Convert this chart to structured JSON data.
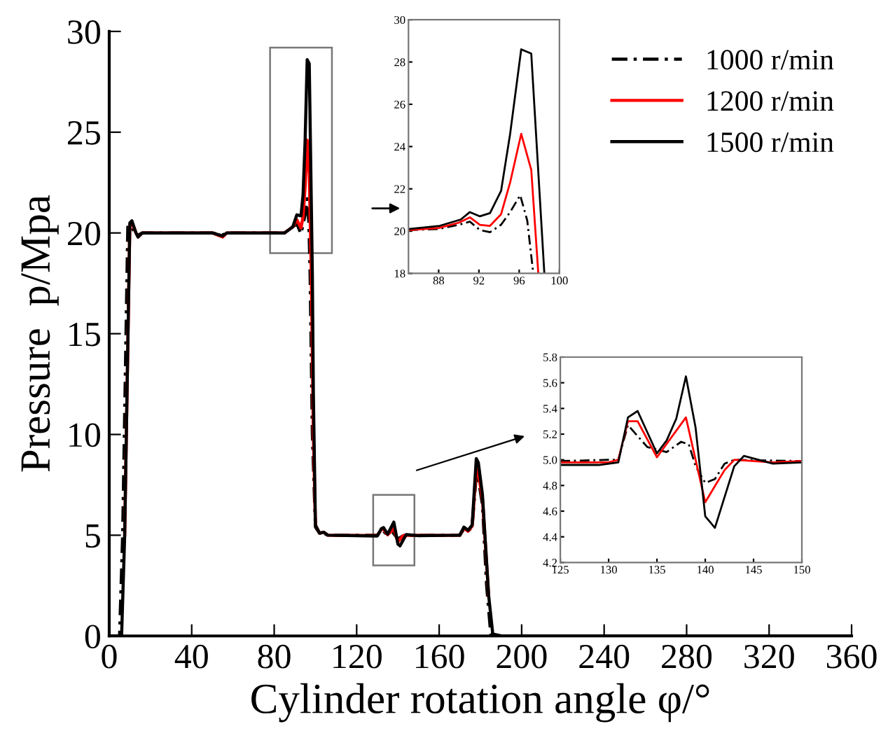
{
  "chart_data": [
    {
      "type": "line",
      "xlabel": "Cylinder rotation angle φ/°",
      "ylabel": "Pressure  p/Mpa",
      "xlim": [
        0,
        360
      ],
      "xticks": [
        0,
        40,
        80,
        120,
        160,
        200,
        240,
        280,
        320,
        360
      ],
      "ylim": [
        0,
        30
      ],
      "yticks": [
        0,
        5,
        10,
        15,
        20,
        25,
        30
      ],
      "grid": false,
      "legend": "top right",
      "series": [
        {
          "name": "1000 r/min",
          "color": "#000000",
          "line_style": "dashed",
          "x": [
            0,
            5,
            6.5,
            9,
            10,
            12,
            14,
            16,
            50,
            55,
            57,
            85,
            89,
            91,
            93,
            95,
            96,
            96.8,
            97.4,
            98.5,
            100,
            102,
            104,
            106,
            130,
            132,
            134,
            137.5,
            140,
            143,
            150,
            170,
            172,
            174,
            176,
            178,
            179,
            181,
            183,
            185,
            190,
            360
          ],
          "values": [
            0,
            0,
            5,
            20.3,
            20.4,
            20.1,
            19.9,
            20,
            20,
            19.9,
            20,
            20,
            20.3,
            20.45,
            19.95,
            20.9,
            21.7,
            20.5,
            18,
            10,
            5.4,
            5.1,
            5.1,
            5.0,
            5.0,
            5.27,
            5.1,
            5.14,
            4.82,
            5.0,
            4.99,
            5.0,
            5.3,
            5.2,
            5.4,
            8.0,
            7.8,
            6.5,
            2.5,
            0.1,
            0,
            0
          ]
        },
        {
          "name": "1200 r/min",
          "color": "#ff0000",
          "line_style": "solid",
          "x": [
            7.5,
            10,
            11,
            13,
            14,
            16,
            50,
            55,
            57,
            85,
            89,
            91,
            93,
            94,
            95,
            96,
            97,
            98,
            99,
            100,
            102,
            104,
            106,
            130,
            132,
            133,
            135,
            138,
            140,
            142,
            143,
            150,
            170,
            172,
            174,
            176,
            178,
            179,
            181,
            184
          ],
          "values": [
            5,
            20.4,
            20.5,
            20,
            19.8,
            20,
            20,
            19.8,
            20,
            20,
            20.3,
            20.65,
            20.25,
            20.8,
            22.3,
            24.6,
            22.9,
            18,
            10,
            5.5,
            5.1,
            5.15,
            5.0,
            4.98,
            5.3,
            5.3,
            5.02,
            5.33,
            4.67,
            4.92,
            5.0,
            4.99,
            5.0,
            5.35,
            5.2,
            5.45,
            8.3,
            8.1,
            6.8,
            2
          ]
        },
        {
          "name": "1500 r/min",
          "color": "#000000",
          "line_style": "solid",
          "x": [
            0,
            6,
            7.5,
            10,
            11,
            13,
            14,
            16,
            50,
            55,
            57,
            85,
            89,
            91,
            93,
            94,
            95,
            96,
            97,
            98.5,
            99,
            100,
            102,
            104,
            106,
            130,
            132,
            133,
            135,
            138,
            140,
            141,
            144,
            150,
            170,
            172,
            174,
            176,
            178,
            179,
            181,
            184,
            186,
            190,
            360
          ],
          "values": [
            0,
            0,
            5,
            20.5,
            20.6,
            20,
            19.8,
            20,
            20,
            19.85,
            20,
            20,
            20.3,
            20.9,
            20.85,
            21.9,
            24.6,
            28.6,
            28.4,
            18,
            12,
            5.5,
            5.1,
            5.15,
            5.0,
            4.96,
            5.33,
            5.38,
            5.05,
            5.65,
            4.56,
            4.47,
            5.03,
            4.98,
            5.0,
            5.4,
            5.25,
            5.5,
            8.8,
            8.6,
            7.0,
            2,
            0.1,
            0,
            0
          ]
        }
      ]
    },
    {
      "type": "line",
      "xlim": [
        85,
        100
      ],
      "xticks": [
        88,
        92,
        96,
        100
      ],
      "ylim": [
        18,
        30
      ],
      "yticks": [
        18,
        20,
        22,
        24,
        26,
        28,
        30
      ],
      "grid": false,
      "series": [
        {
          "color": "#000000",
          "line_style": "dashed",
          "x": [
            85,
            88,
            90,
            91.1,
            92.1,
            93.1,
            94.2,
            95.1,
            96.1,
            96.8,
            97.4
          ],
          "values": [
            20.05,
            20.1,
            20.3,
            20.45,
            20.05,
            19.95,
            20.3,
            20.9,
            21.7,
            20.5,
            18
          ]
        },
        {
          "color": "#ff0000",
          "line_style": "solid",
          "x": [
            85,
            88,
            90,
            91.1,
            92.1,
            93.1,
            94.2,
            95.1,
            96.2,
            97.2,
            97.9
          ],
          "values": [
            20.05,
            20.15,
            20.4,
            20.65,
            20.3,
            20.25,
            20.8,
            22.3,
            24.6,
            22.9,
            18
          ]
        },
        {
          "color": "#000000",
          "line_style": "solid",
          "x": [
            85,
            88.1,
            90.2,
            91.1,
            92.1,
            93.1,
            94.2,
            95.1,
            96.2,
            97.2,
            98.5
          ],
          "values": [
            20.1,
            20.25,
            20.55,
            20.9,
            20.7,
            20.85,
            21.9,
            24.6,
            28.6,
            28.4,
            18
          ]
        }
      ]
    },
    {
      "type": "line",
      "xlim": [
        125,
        150
      ],
      "xticks": [
        125,
        130,
        135,
        140,
        145,
        150
      ],
      "ylim": [
        4.2,
        5.8
      ],
      "yticks": [
        4.2,
        4.4,
        4.6,
        4.8,
        {
          "value": 5,
          "label": "5.0"
        },
        5.2,
        5.4,
        5.6,
        5.8
      ],
      "grid": false,
      "series": [
        {
          "color": "#000000",
          "line_style": "dashed",
          "x": [
            125,
            130,
            131,
            132,
            134,
            136,
            137.5,
            138.3,
            139,
            140,
            141,
            142,
            143,
            150
          ],
          "values": [
            4.99,
            5.0,
            5.0,
            5.27,
            5.1,
            5.06,
            5.14,
            5.12,
            4.95,
            4.82,
            4.85,
            4.97,
            5.0,
            4.99
          ]
        },
        {
          "color": "#ff0000",
          "line_style": "solid",
          "x": [
            125,
            130,
            131,
            132,
            133,
            135,
            138,
            140,
            142,
            143,
            147,
            150
          ],
          "values": [
            4.98,
            4.98,
            5.0,
            5.3,
            5.3,
            5.02,
            5.33,
            4.67,
            4.92,
            5.0,
            4.98,
            4.99
          ]
        },
        {
          "color": "#000000",
          "line_style": "solid",
          "x": [
            125,
            129,
            131,
            132,
            133,
            135,
            136,
            137,
            138,
            139,
            140,
            141,
            143,
            144,
            147,
            150
          ],
          "values": [
            4.96,
            4.96,
            4.98,
            5.33,
            5.38,
            5.05,
            5.15,
            5.32,
            5.65,
            5.25,
            4.56,
            4.47,
            4.95,
            5.03,
            4.97,
            4.98
          ]
        }
      ]
    }
  ]
}
